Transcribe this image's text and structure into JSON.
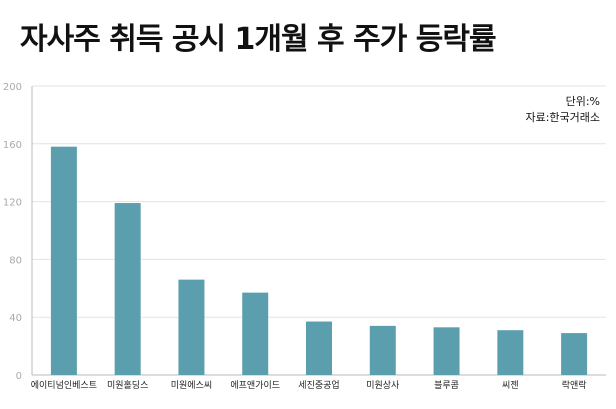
{
  "title": "자사주 취득 공시 1개월 후 주가 등락률",
  "unit": "단위:%",
  "source": "자료:한국거래소",
  "colors": {
    "bar": "#5b9fae",
    "grid": "#e3e3e3",
    "axis": "#bbbbbb"
  },
  "chart_data": {
    "type": "bar",
    "title": "자사주 취득 공시 1개월 후 주가 등락률",
    "xlabel": "",
    "ylabel": "",
    "categories": [
      "에이티넘인베스트",
      "미원홀딩스",
      "미원에스씨",
      "에프앤가이드",
      "세진중공업",
      "미원상사",
      "블루콤",
      "씨젠",
      "락앤락"
    ],
    "values": [
      158,
      119,
      66,
      57,
      37,
      34,
      33,
      31,
      29
    ],
    "ylim": [
      0,
      200
    ],
    "yticks": [
      "0",
      "40",
      "80",
      "120",
      "160",
      "200"
    ],
    "grid": true,
    "legend": "none"
  }
}
